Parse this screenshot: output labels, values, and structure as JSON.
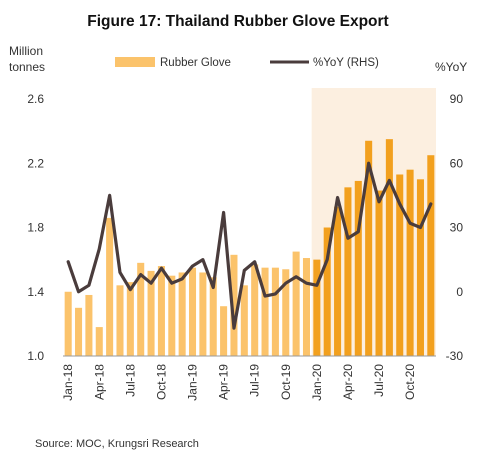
{
  "chart_data": {
    "type": "bar",
    "title": "Figure 17: Thailand Rubber Glove Export",
    "ylabel_left": "Million tonnes",
    "ylabel_right": "%YoY",
    "source": "Source: MOC, Krungsri Research",
    "ylim_left": [
      1.0,
      2.6
    ],
    "yticks_left": [
      "1.0",
      "1.4",
      "1.8",
      "2.2",
      "2.6"
    ],
    "ylim_right": [
      -30,
      90
    ],
    "yticks_right": [
      "-30",
      "0",
      "30",
      "60",
      "90"
    ],
    "xtick_labels": [
      "Jan-18",
      "Apr-18",
      "Jul-18",
      "Oct-18",
      "Jan-19",
      "Apr-19",
      "Jul-19",
      "Oct-19",
      "Jan-20",
      "Apr-20",
      "Jul-20",
      "Oct-20"
    ],
    "x": [
      "Jan-18",
      "Feb-18",
      "Mar-18",
      "Apr-18",
      "May-18",
      "Jun-18",
      "Jul-18",
      "Aug-18",
      "Sep-18",
      "Oct-18",
      "Nov-18",
      "Dec-18",
      "Jan-19",
      "Feb-19",
      "Mar-19",
      "Apr-19",
      "May-19",
      "Jun-19",
      "Jul-19",
      "Aug-19",
      "Sep-19",
      "Oct-19",
      "Nov-19",
      "Dec-19",
      "Jan-20",
      "Feb-20",
      "Mar-20",
      "Apr-20",
      "May-20",
      "Jun-20",
      "Jul-20",
      "Aug-20",
      "Sep-20",
      "Oct-20",
      "Nov-20",
      "Dec-20"
    ],
    "highlight_from": "Jan-20",
    "series": [
      {
        "name": "Rubber Glove",
        "type": "bar",
        "axis": "left",
        "values": [
          1.4,
          1.3,
          1.38,
          1.18,
          1.86,
          1.44,
          1.46,
          1.58,
          1.53,
          1.56,
          1.5,
          1.52,
          1.55,
          1.52,
          1.49,
          1.31,
          1.63,
          1.44,
          1.57,
          1.55,
          1.55,
          1.54,
          1.65,
          1.61,
          1.6,
          1.8,
          1.93,
          2.05,
          2.09,
          2.34,
          2.03,
          2.35,
          2.13,
          2.16,
          2.1,
          2.25
        ]
      },
      {
        "name": "%YoY (RHS)",
        "type": "line",
        "axis": "right",
        "values": [
          14,
          0,
          3,
          20,
          45,
          9,
          1,
          8,
          4,
          11,
          4,
          6,
          12,
          15,
          2,
          37,
          -17,
          10,
          14,
          -2,
          -1,
          4,
          7,
          4,
          3,
          15,
          44,
          25,
          28,
          60,
          42,
          52,
          41,
          32,
          30,
          41
        ]
      }
    ],
    "legend_position": "top",
    "grid": false,
    "colors": {
      "bar": "#fbc36b",
      "bar_highlight": "#f2a01e",
      "line": "#4a3c3c",
      "highlight_bg": "#fcefe0"
    }
  }
}
